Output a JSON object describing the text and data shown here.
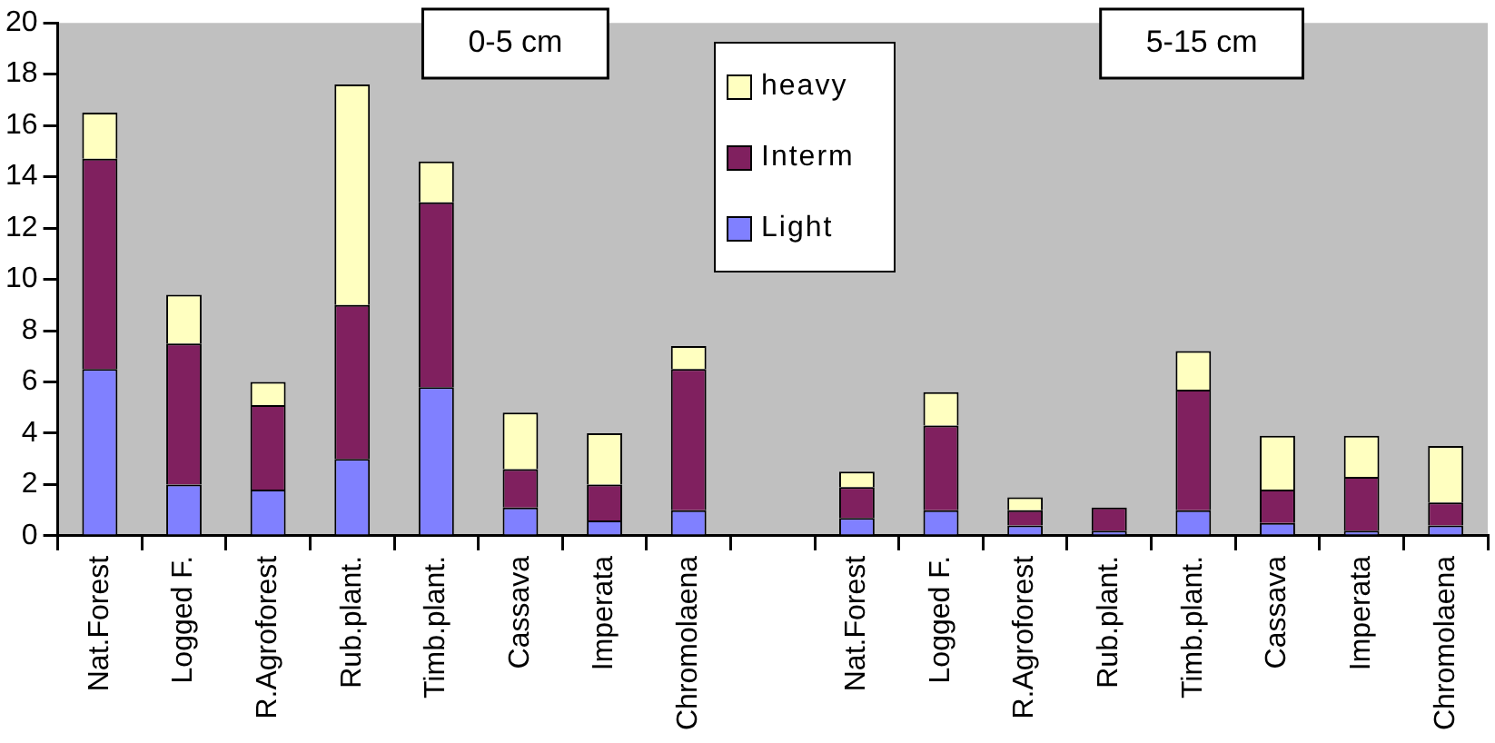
{
  "chart_data": {
    "type": "bar",
    "stacked": true,
    "categories": [
      "Nat.Forest",
      "Logged F.",
      "R.Agroforest",
      "Rub.plant.",
      "Timb.plant.",
      "Cassava",
      "Imperata",
      "Chromolaena",
      null,
      "Nat.Forest",
      "Logged F.",
      "R.Agroforest",
      "Rub.plant.",
      "Timb.plant.",
      "Cassava",
      "Imperata",
      "Chromolaena"
    ],
    "series": [
      {
        "name": "Light",
        "color": "#8080ff",
        "values": [
          6.5,
          2.0,
          1.8,
          3.0,
          5.8,
          1.1,
          0.6,
          1.0,
          null,
          0.7,
          1.0,
          0.4,
          0.2,
          1.0,
          0.5,
          0.2,
          0.4
        ]
      },
      {
        "name": "Interm",
        "color": "#80205f",
        "values": [
          8.2,
          5.5,
          3.3,
          6.0,
          7.2,
          1.5,
          1.4,
          5.5,
          null,
          1.2,
          3.3,
          0.6,
          0.9,
          4.7,
          1.3,
          2.1,
          0.9
        ]
      },
      {
        "name": "heavy",
        "color": "#ffffc0",
        "values": [
          1.8,
          1.9,
          0.9,
          8.6,
          1.6,
          2.2,
          2.0,
          0.9,
          null,
          0.6,
          1.3,
          0.5,
          0.0,
          1.5,
          2.1,
          1.6,
          2.2
        ]
      }
    ],
    "ylim": [
      0,
      20
    ],
    "yticks": [
      0,
      2,
      4,
      6,
      8,
      10,
      12,
      14,
      16,
      18,
      20
    ],
    "annotations": [
      "0-5 cm",
      "5-15 cm"
    ],
    "legend": "top",
    "grid": false
  }
}
